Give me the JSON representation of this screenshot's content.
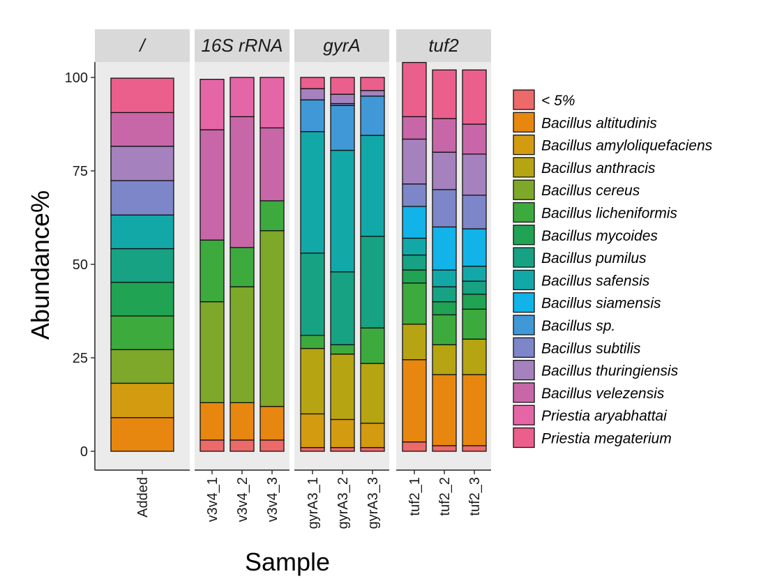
{
  "chart_data": {
    "type": "bar",
    "stacked": true,
    "ylabel": "Abundance%",
    "xlabel": "Sample",
    "ylim": [
      0,
      100
    ],
    "yticks": [
      0,
      25,
      50,
      75,
      100
    ],
    "ytick_labels": [
      "0",
      "25",
      "50",
      "75",
      "100"
    ],
    "facets": [
      {
        "label": "/",
        "categories": [
          "Added"
        ]
      },
      {
        "label": "16S rRNA",
        "categories": [
          "v3v4_1",
          "v3v4_2",
          "v3v4_3"
        ]
      },
      {
        "label": "gyrA",
        "categories": [
          "gyrA3_1",
          "gyrA3_2",
          "gyrA3_3"
        ]
      },
      {
        "label": "tuf2",
        "categories": [
          "tuf2_1",
          "tuf2_2",
          "tuf2_3"
        ]
      }
    ],
    "legend_position": "right",
    "series": [
      {
        "name": "< 5%",
        "color": "#EC6A6A",
        "values": [
          0,
          3,
          3,
          3,
          1,
          1,
          1,
          2.5,
          1.5,
          1.5
        ]
      },
      {
        "name": "Bacillus altitudinis",
        "color": "#E8870F",
        "values": [
          9,
          10,
          10,
          9,
          0,
          0,
          0,
          22,
          19,
          19
        ]
      },
      {
        "name": "Bacillus amyloliquefaciens",
        "color": "#D39B10",
        "values": [
          9.2,
          0,
          0,
          0,
          9,
          7.5,
          6.5,
          0,
          0,
          0
        ]
      },
      {
        "name": "Bacillus anthracis",
        "color": "#B6A412",
        "values": [
          0,
          0,
          0,
          0,
          17.5,
          17.5,
          16,
          9.5,
          8,
          9.5
        ]
      },
      {
        "name": "Bacillus cereus",
        "color": "#7EA82A",
        "values": [
          9,
          27,
          31,
          47,
          0,
          0,
          0,
          0,
          0,
          0
        ]
      },
      {
        "name": "Bacillus licheniformis",
        "color": "#3DAA3D",
        "values": [
          9,
          16.5,
          10.5,
          8,
          3.5,
          2.5,
          9.5,
          11,
          8,
          8
        ]
      },
      {
        "name": "Bacillus mycoides",
        "color": "#20A352",
        "values": [
          9,
          0,
          0,
          0,
          0,
          0,
          0,
          3.5,
          3.5,
          4
        ]
      },
      {
        "name": "Bacillus pumilus",
        "color": "#16A283",
        "values": [
          9,
          0,
          0,
          0,
          22,
          19.5,
          24.5,
          4,
          4,
          3.5
        ]
      },
      {
        "name": "Bacillus safensis",
        "color": "#13A8A8",
        "values": [
          9,
          0,
          0,
          0,
          32.5,
          32.5,
          27,
          4.5,
          4.5,
          4
        ]
      },
      {
        "name": "Bacillus siamensis",
        "color": "#11B3E8",
        "values": [
          0,
          0,
          0,
          0,
          0,
          0,
          0,
          8.5,
          11.5,
          10
        ]
      },
      {
        "name": "Bacillus sp.",
        "color": "#4098D6",
        "values": [
          0,
          0,
          0,
          0,
          8.5,
          12,
          10.5,
          0,
          0,
          0
        ]
      },
      {
        "name": "Bacillus subtilis",
        "color": "#7D86C9",
        "values": [
          9.2,
          0,
          0,
          0,
          0,
          0.5,
          0,
          6,
          10,
          9
        ]
      },
      {
        "name": "Bacillus thuringiensis",
        "color": "#A581BE",
        "values": [
          9.2,
          0,
          0,
          0,
          3,
          2.5,
          1.5,
          12,
          10,
          11
        ]
      },
      {
        "name": "Bacillus velezensis",
        "color": "#C867A8",
        "values": [
          9,
          29.5,
          35,
          19.5,
          0,
          0,
          0,
          6,
          9,
          8
        ]
      },
      {
        "name": "Priestia aryabhattai",
        "color": "#E566A6",
        "values": [
          0,
          13.5,
          10.5,
          13.5,
          0,
          0,
          0,
          0,
          0,
          0
        ]
      },
      {
        "name": "Priestia megaterium",
        "color": "#EB5F8D",
        "values": [
          9.2,
          0,
          0,
          0,
          3,
          4.5,
          3.5,
          14.5,
          13,
          14.5
        ]
      }
    ]
  }
}
